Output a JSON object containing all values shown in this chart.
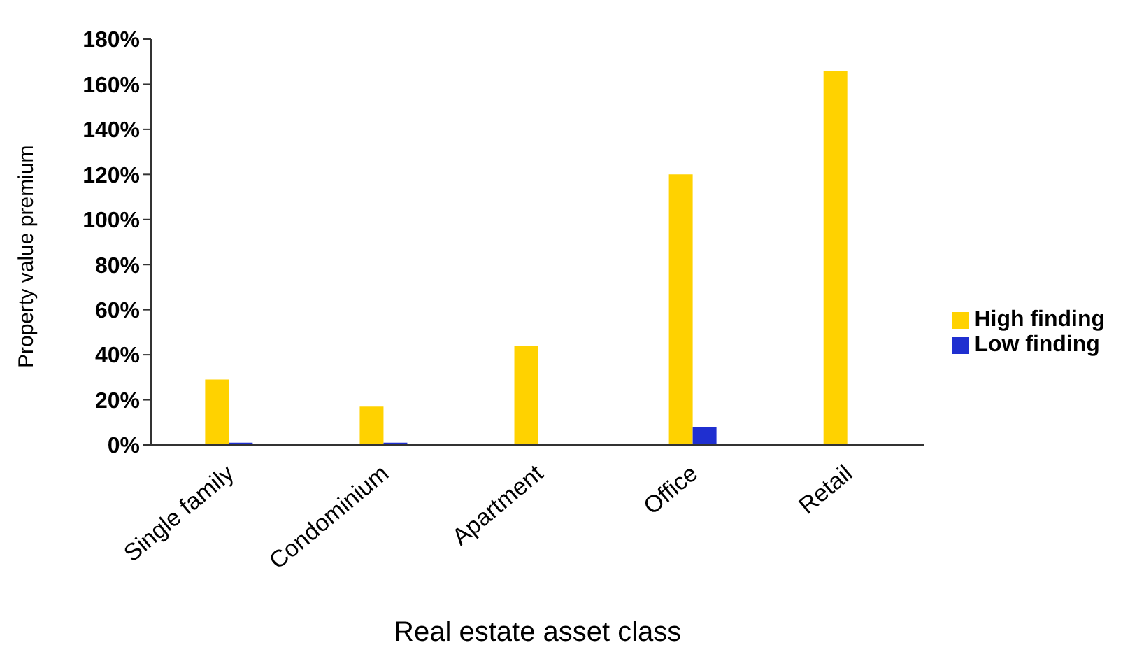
{
  "chart_data": {
    "type": "bar",
    "xlabel": "Real estate asset class",
    "ylabel": "Property value premium",
    "categories": [
      "Single family",
      "Condominium",
      "Apartment",
      "Office",
      "Retail"
    ],
    "series": [
      {
        "name": "High finding",
        "color": "#ffd200",
        "values": [
          29,
          17,
          44,
          120,
          166
        ]
      },
      {
        "name": "Low finding",
        "color": "#1f2fd0",
        "values": [
          1,
          1,
          0,
          8,
          0.5
        ]
      }
    ],
    "ylim": [
      0,
      180
    ],
    "yticks": [
      {
        "value": 0,
        "label": "0%"
      },
      {
        "value": 20,
        "label": "20%"
      },
      {
        "value": 40,
        "label": "40%"
      },
      {
        "value": 60,
        "label": "60%"
      },
      {
        "value": 80,
        "label": "80%"
      },
      {
        "value": 100,
        "label": "100%"
      },
      {
        "value": 120,
        "label": "120%"
      },
      {
        "value": 140,
        "label": "140%"
      },
      {
        "value": 160,
        "label": "160%"
      },
      {
        "value": 180,
        "label": "180%"
      }
    ],
    "grid": false,
    "legend": "right"
  }
}
